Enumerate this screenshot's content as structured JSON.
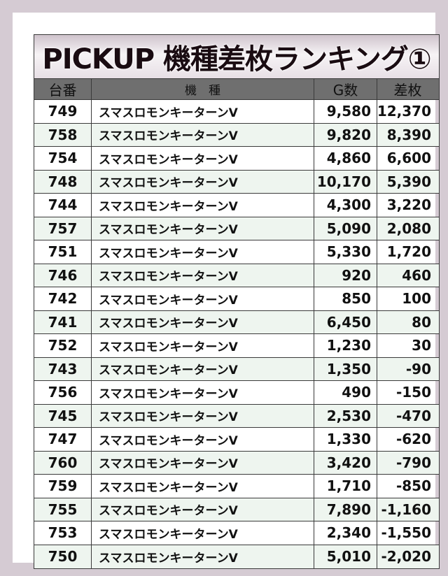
{
  "title": "PICKUP 機種差枚ランキング①",
  "headers": {
    "unit": "台番",
    "machine": "機　種",
    "games": "G数",
    "diff": "差枚"
  },
  "colors": {
    "background": "#d5cbd3",
    "header": "#6f6f6f",
    "row_alt": "#eef5ef"
  },
  "rows": [
    {
      "unit": "749",
      "machine": "スマスロモンキーターンV",
      "games": "9,580",
      "diff": "12,370"
    },
    {
      "unit": "758",
      "machine": "スマスロモンキーターンV",
      "games": "9,820",
      "diff": "8,390"
    },
    {
      "unit": "754",
      "machine": "スマスロモンキーターンV",
      "games": "4,860",
      "diff": "6,600"
    },
    {
      "unit": "748",
      "machine": "スマスロモンキーターンV",
      "games": "10,170",
      "diff": "5,390"
    },
    {
      "unit": "744",
      "machine": "スマスロモンキーターンV",
      "games": "4,300",
      "diff": "3,220"
    },
    {
      "unit": "757",
      "machine": "スマスロモンキーターンV",
      "games": "5,090",
      "diff": "2,080"
    },
    {
      "unit": "751",
      "machine": "スマスロモンキーターンV",
      "games": "5,330",
      "diff": "1,720"
    },
    {
      "unit": "746",
      "machine": "スマスロモンキーターンV",
      "games": "920",
      "diff": "460"
    },
    {
      "unit": "742",
      "machine": "スマスロモンキーターンV",
      "games": "850",
      "diff": "100"
    },
    {
      "unit": "741",
      "machine": "スマスロモンキーターンV",
      "games": "6,450",
      "diff": "80"
    },
    {
      "unit": "752",
      "machine": "スマスロモンキーターンV",
      "games": "1,230",
      "diff": "30"
    },
    {
      "unit": "743",
      "machine": "スマスロモンキーターンV",
      "games": "1,350",
      "diff": "-90"
    },
    {
      "unit": "756",
      "machine": "スマスロモンキーターンV",
      "games": "490",
      "diff": "-150"
    },
    {
      "unit": "745",
      "machine": "スマスロモンキーターンV",
      "games": "2,530",
      "diff": "-470"
    },
    {
      "unit": "747",
      "machine": "スマスロモンキーターンV",
      "games": "1,330",
      "diff": "-620"
    },
    {
      "unit": "760",
      "machine": "スマスロモンキーターンV",
      "games": "3,420",
      "diff": "-790"
    },
    {
      "unit": "759",
      "machine": "スマスロモンキーターンV",
      "games": "1,710",
      "diff": "-850"
    },
    {
      "unit": "755",
      "machine": "スマスロモンキーターンV",
      "games": "7,890",
      "diff": "-1,160"
    },
    {
      "unit": "753",
      "machine": "スマスロモンキーターンV",
      "games": "2,340",
      "diff": "-1,550"
    },
    {
      "unit": "750",
      "machine": "スマスロモンキーターンV",
      "games": "5,010",
      "diff": "-2,020"
    }
  ]
}
